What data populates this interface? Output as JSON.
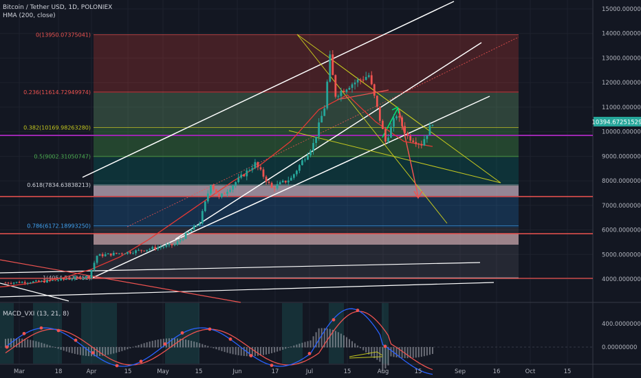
{
  "header": {
    "title": "Bitcoin / Tether USD, 1D, POLONIEX",
    "indicator": "HMA (200, close)"
  },
  "macd": {
    "label": "MACD_VXI (13, 21, 8)",
    "ticks": [
      "400.00000000",
      "0.00000000"
    ]
  },
  "colors": {
    "background": "#131722",
    "up": "#26a69a",
    "down": "#ef5350",
    "price_tag": "#26a69a",
    "purple_line": "#9c27b0",
    "channel": "#ffffff",
    "hma": "#e53935"
  },
  "chart_data": {
    "type": "candlestick",
    "title": "Bitcoin / Tether USD, 1D, POLONIEX",
    "price_tag": "10394.67251529",
    "x_ticks": [
      "Mar",
      "18",
      "Apr",
      "15",
      "May",
      "15",
      "Jun",
      "17",
      "Jul",
      "15",
      "Aug",
      "15",
      "Sep",
      "16",
      "Oct",
      "15"
    ],
    "y_ticks": [
      "15000.00000000",
      "14000.00000000",
      "13000.00000000",
      "12000.00000000",
      "11000.00000000",
      "10000.00000000",
      "9000.00000000",
      "8000.00000000",
      "7000.00000000",
      "6000.00000000",
      "5000.00000000",
      "4000.00000000"
    ],
    "ylim": [
      3300,
      15500
    ],
    "fib_levels": [
      {
        "label": "0(13950.07375041)",
        "value": 13950.07
      },
      {
        "label": "0.236(11614.72949974)",
        "value": 11614.73
      },
      {
        "label": "0.382(10169.98263280)",
        "value": 10169.98
      },
      {
        "label": "0.5(9002.31050747)",
        "value": 9002.31
      },
      {
        "label": "0.618(7834.63838213)",
        "value": 7834.64
      },
      {
        "label": "0.786(6172.18993250)",
        "value": 6172.19
      },
      {
        "label": "1(4054.5471452)",
        "value": 4054.55
      }
    ],
    "series": [
      {
        "name": "HMA (200, close)",
        "values": [
          3600,
          3700,
          3850,
          4050,
          4400,
          4900,
          5600,
          6400,
          7200,
          8000,
          8700,
          9600,
          10900,
          11500,
          10400,
          9600,
          9400
        ]
      }
    ],
    "price_path": [
      {
        "date": "Mar 1",
        "close": 3850
      },
      {
        "date": "Mar 15",
        "close": 3900
      },
      {
        "date": "Mar 31",
        "close": 4100
      },
      {
        "date": "Apr 3",
        "close": 4950
      },
      {
        "date": "Apr 15",
        "close": 5100
      },
      {
        "date": "May 1",
        "close": 5400
      },
      {
        "date": "May 10",
        "close": 6300
      },
      {
        "date": "May 14",
        "close": 7900
      },
      {
        "date": "May 17",
        "close": 7300
      },
      {
        "date": "May 30",
        "close": 8700
      },
      {
        "date": "Jun 5",
        "close": 7700
      },
      {
        "date": "Jun 12",
        "close": 8100
      },
      {
        "date": "Jun 20",
        "close": 9500
      },
      {
        "date": "Jun 24",
        "close": 11000
      },
      {
        "date": "Jun 26",
        "close": 13000
      },
      {
        "date": "Jun 28",
        "close": 11500
      },
      {
        "date": "Jul 3",
        "close": 11900
      },
      {
        "date": "Jul 10",
        "close": 12300
      },
      {
        "date": "Jul 16",
        "close": 9600
      },
      {
        "date": "Jul 20",
        "close": 10700
      },
      {
        "date": "Jul 24",
        "close": 9800
      },
      {
        "date": "Jul 29",
        "close": 9500
      },
      {
        "date": "Aug 2",
        "close": 10394.67
      }
    ]
  }
}
